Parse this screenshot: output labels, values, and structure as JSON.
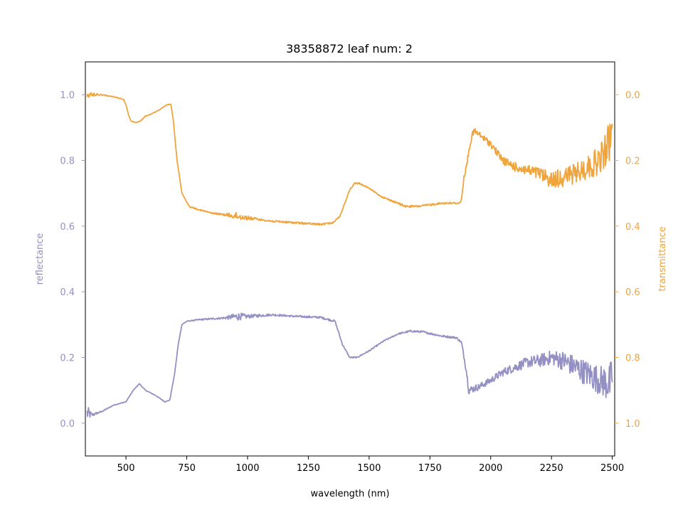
{
  "chart_data": {
    "type": "line",
    "title": "38358872 leaf num: 2",
    "xlabel": "wavelength (nm)",
    "ylabel_left": "reflectance",
    "ylabel_right": "transmittance",
    "xlim": [
      333,
      2510
    ],
    "ylim_left": [
      -0.1,
      1.1
    ],
    "ylim_right": [
      1.1,
      -0.1
    ],
    "right_axis_inverted": true,
    "x_ticks": [
      500,
      750,
      1000,
      1250,
      1500,
      1750,
      2000,
      2250,
      2500
    ],
    "x_tick_labels": [
      "500",
      "750",
      "1000",
      "1250",
      "1500",
      "1750",
      "2000",
      "2250",
      "2500"
    ],
    "y_left_ticks": [
      0.0,
      0.2,
      0.4,
      0.6,
      0.8,
      1.0
    ],
    "y_left_tick_labels": [
      "0.0",
      "0.2",
      "0.4",
      "0.6",
      "0.8",
      "1.0"
    ],
    "y_right_ticks": [
      0.0,
      0.2,
      0.4,
      0.6,
      0.8,
      1.0
    ],
    "y_right_tick_labels": [
      "0.0",
      "0.2",
      "0.4",
      "0.6",
      "0.8",
      "1.0"
    ],
    "grid": false,
    "colors": {
      "reflectance": "#9590c4",
      "transmittance": "#efa43c"
    },
    "series": [
      {
        "axis": "left",
        "x": [
          340,
          360,
          400,
          450,
          500,
          530,
          555,
          580,
          620,
          660,
          680,
          700,
          715,
          730,
          750,
          800,
          900,
          960,
          1000,
          1100,
          1200,
          1300,
          1360,
          1390,
          1420,
          1450,
          1500,
          1560,
          1620,
          1670,
          1720,
          1800,
          1860,
          1880,
          1900,
          1910,
          1950,
          2000,
          2050,
          2100,
          2150,
          2200,
          2250,
          2300,
          2350,
          2400,
          2450,
          2490,
          2500
        ],
        "y": [
          0.03,
          0.025,
          0.035,
          0.055,
          0.065,
          0.1,
          0.12,
          0.1,
          0.085,
          0.065,
          0.07,
          0.15,
          0.24,
          0.3,
          0.31,
          0.315,
          0.32,
          0.325,
          0.325,
          0.33,
          0.325,
          0.322,
          0.31,
          0.24,
          0.2,
          0.2,
          0.22,
          0.25,
          0.272,
          0.28,
          0.278,
          0.265,
          0.26,
          0.245,
          0.16,
          0.1,
          0.11,
          0.13,
          0.155,
          0.17,
          0.185,
          0.19,
          0.2,
          0.19,
          0.17,
          0.15,
          0.13,
          0.12,
          0.15
        ],
        "noise": [
          0.025,
          0.005,
          0.002,
          0.001,
          0.001,
          0.001,
          0.001,
          0.001,
          0.001,
          0.001,
          0.001,
          0.001,
          0.001,
          0.001,
          0.001,
          0.002,
          0.003,
          0.012,
          0.006,
          0.003,
          0.003,
          0.003,
          0.003,
          0.002,
          0.002,
          0.002,
          0.002,
          0.002,
          0.002,
          0.003,
          0.003,
          0.003,
          0.003,
          0.004,
          0.01,
          0.012,
          0.01,
          0.01,
          0.012,
          0.014,
          0.016,
          0.02,
          0.022,
          0.03,
          0.035,
          0.04,
          0.045,
          0.06,
          0.06
        ]
      },
      {
        "axis": "right",
        "x": [
          340,
          360,
          400,
          440,
          470,
          490,
          500,
          510,
          520,
          540,
          560,
          580,
          600,
          640,
          670,
          685,
          695,
          710,
          730,
          760,
          800,
          850,
          900,
          960,
          1000,
          1050,
          1100,
          1200,
          1300,
          1350,
          1380,
          1400,
          1420,
          1440,
          1460,
          1500,
          1550,
          1600,
          1650,
          1700,
          1750,
          1800,
          1850,
          1870,
          1880,
          1890,
          1900,
          1915,
          1930,
          1950,
          2000,
          2050,
          2100,
          2150,
          2200,
          2250,
          2300,
          2350,
          2400,
          2450,
          2490,
          2500
        ],
        "y": [
          0.0,
          0.0,
          0.0,
          0.005,
          0.01,
          0.015,
          0.03,
          0.06,
          0.08,
          0.085,
          0.08,
          0.065,
          0.06,
          0.045,
          0.03,
          0.03,
          0.08,
          0.2,
          0.3,
          0.34,
          0.35,
          0.36,
          0.365,
          0.37,
          0.375,
          0.38,
          0.385,
          0.39,
          0.395,
          0.39,
          0.37,
          0.33,
          0.29,
          0.27,
          0.27,
          0.285,
          0.31,
          0.325,
          0.34,
          0.34,
          0.335,
          0.33,
          0.33,
          0.33,
          0.32,
          0.25,
          0.22,
          0.15,
          0.11,
          0.12,
          0.15,
          0.2,
          0.22,
          0.23,
          0.24,
          0.26,
          0.25,
          0.24,
          0.22,
          0.2,
          0.14,
          0.12
        ],
        "noise": [
          0.012,
          0.006,
          0.002,
          0.001,
          0.001,
          0.001,
          0.001,
          0.001,
          0.001,
          0.001,
          0.001,
          0.001,
          0.001,
          0.001,
          0.001,
          0.001,
          0.001,
          0.001,
          0.001,
          0.002,
          0.002,
          0.002,
          0.003,
          0.012,
          0.006,
          0.003,
          0.003,
          0.003,
          0.003,
          0.002,
          0.002,
          0.002,
          0.002,
          0.002,
          0.002,
          0.002,
          0.002,
          0.003,
          0.003,
          0.003,
          0.003,
          0.003,
          0.003,
          0.003,
          0.004,
          0.006,
          0.008,
          0.01,
          0.01,
          0.01,
          0.01,
          0.012,
          0.014,
          0.016,
          0.02,
          0.025,
          0.03,
          0.03,
          0.035,
          0.045,
          0.06,
          0.06
        ]
      }
    ]
  }
}
